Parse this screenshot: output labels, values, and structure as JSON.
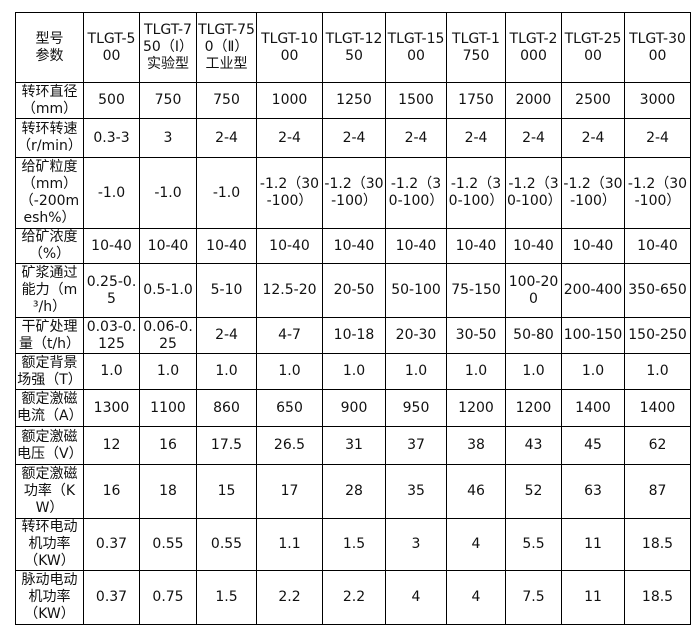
{
  "header": {
    "corner": [
      "型号",
      "参数"
    ],
    "models": [
      "TLGT-500",
      "TLGT-750（Ⅰ）实验型",
      "TLGT-750（Ⅱ）工业型",
      "TLGT-1000",
      "TLGT-1250",
      "TLGT-1500",
      "TLGT-1750",
      "TLGT-2000",
      "TLGT-2500",
      "TLGT-3000"
    ]
  },
  "rows": [
    {
      "param": "转环直径（mm）",
      "values": [
        "500",
        "750",
        "750",
        "1000",
        "1250",
        "1500",
        "1750",
        "2000",
        "2500",
        "3000"
      ]
    },
    {
      "param": "转环转速（r/min）",
      "values": [
        "0.3-3",
        "3",
        "2-4",
        "2-4",
        "2-4",
        "2-4",
        "2-4",
        "2-4",
        "2-4",
        "2-4"
      ]
    },
    {
      "param": "给矿粒度（mm）（-200mesh%）",
      "values": [
        "-1.0",
        "-1.0",
        "-1.0",
        "-1.2（30-100）",
        "-1.2（30-100）",
        "-1.2（30-100）",
        "-1.2（30-100）",
        "-1.2（30-100）",
        "-1.2（30-100）",
        "-1.2（30-100）"
      ]
    },
    {
      "param": "给矿浓度（%）",
      "values": [
        "10-40",
        "10-40",
        "10-40",
        "10-40",
        "10-40",
        "10-40",
        "10-40",
        "10-40",
        "10-40",
        "10-40"
      ]
    },
    {
      "param": "矿浆通过能力（m³/h）",
      "values": [
        "0.25-0.5",
        "0.5-1.0",
        "5-10",
        "12.5-20",
        "20-50",
        "50-100",
        "75-150",
        "100-200",
        "200-400",
        "350-650"
      ]
    },
    {
      "param": "干矿处理量（t/h）",
      "values": [
        "0.03-0.125",
        "0.06-0.25",
        "2-4",
        "4-7",
        "10-18",
        "20-30",
        "30-50",
        "50-80",
        "100-150",
        "150-250"
      ]
    },
    {
      "param": "额定背景场强（T）",
      "values": [
        "1.0",
        "1.0",
        "1.0",
        "1.0",
        "1.0",
        "1.0",
        "1.0",
        "1.0",
        "1.0",
        "1.0"
      ]
    },
    {
      "param": "额定激磁电流（A）",
      "values": [
        "1300",
        "1100",
        "860",
        "650",
        "900",
        "950",
        "1200",
        "1200",
        "1400",
        "1400"
      ]
    },
    {
      "param": "额定激磁电压（V）",
      "values": [
        "12",
        "16",
        "17.5",
        "26.5",
        "31",
        "37",
        "38",
        "43",
        "45",
        "62"
      ]
    },
    {
      "param": "额定激磁功率（KW）",
      "values": [
        "16",
        "18",
        "15",
        "17",
        "28",
        "35",
        "46",
        "52",
        "63",
        "87"
      ]
    },
    {
      "param": "转环电动机功率（KW）",
      "values": [
        "0.37",
        "0.55",
        "0.55",
        "1.1",
        "1.5",
        "3",
        "4",
        "5.5",
        "11",
        "18.5"
      ]
    },
    {
      "param": "脉动电动机功率（KW）",
      "values": [
        "0.37",
        "0.75",
        "1.5",
        "2.2",
        "2.2",
        "4",
        "4",
        "7.5",
        "11",
        "18.5"
      ]
    }
  ]
}
